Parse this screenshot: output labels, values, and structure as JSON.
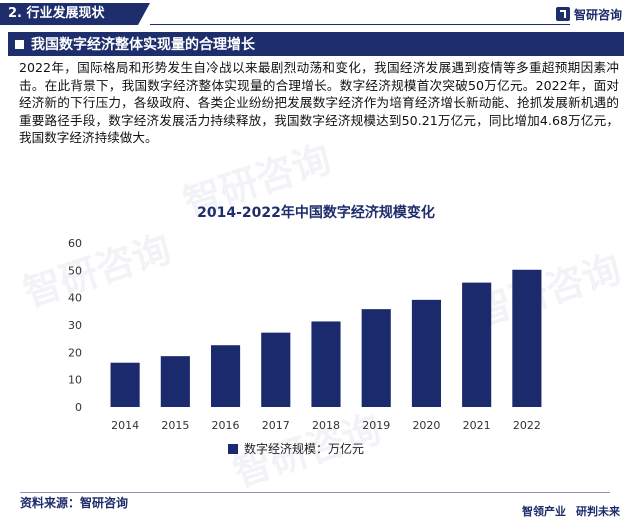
{
  "header": {
    "section_label": "2. 行业发展现状",
    "brand": "智研咨询",
    "logo_icon": "zhiyan-logo-icon"
  },
  "heading": {
    "title": "我国数字经济整体实现量的合理增长"
  },
  "paragraph": "2022年，国际格局和形势发生自冷战以来最剧烈动荡和变化，我国经济发展遇到疫情等多重超预期因素冲击。在此背景下，我国数字经济整体实现量的合理增长。数字经济规模首次突破50万亿元。2022年，面对经济新的下行压力，各级政府、各类企业纷纷把发展数字经济作为培育经济增长新动能、抢抓发展新机遇的重要路径手段，数字经济发展活力持续释放，我国数字经济规模达到50.21万亿元，同比增加4.68万亿元，我国数字经济持续做大。",
  "watermark": "智研咨询",
  "chart_data": {
    "type": "bar",
    "title": "2014-2022年中国数字经济规模变化",
    "categories": [
      "2014",
      "2015",
      "2016",
      "2017",
      "2018",
      "2019",
      "2020",
      "2021",
      "2022"
    ],
    "series": [
      {
        "name": "数字经济规模：万亿元",
        "values": [
          16.2,
          18.6,
          22.6,
          27.2,
          31.3,
          35.8,
          39.2,
          45.5,
          50.21
        ]
      }
    ],
    "ylim": [
      0,
      60
    ],
    "yticks": [
      0,
      10,
      20,
      30,
      40,
      50,
      60
    ],
    "grid": false,
    "legend": "bottom",
    "color": "#1a2a6c"
  },
  "footer": {
    "source": "资料来源：智研咨询",
    "slogan_left": "智领产业",
    "slogan_right": "研判未来"
  }
}
